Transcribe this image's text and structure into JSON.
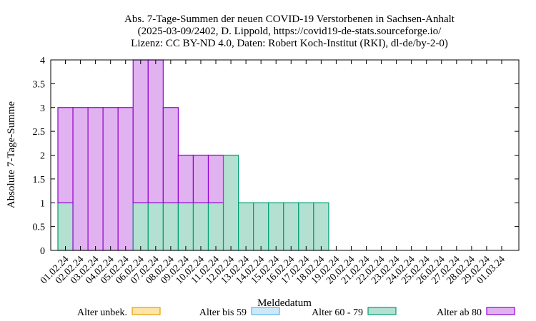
{
  "chart_data": {
    "type": "bar",
    "stacked": true,
    "title_lines": [
      "Abs. 7-Tage-Summen der neuen COVID-19 Verstorbenen in Sachsen-Anhalt",
      "(2025-03-09/2402, D. Lippold, https://covid19-de-stats.sourceforge.io/",
      "Lizenz: CC BY-ND 4.0, Daten: Robert Koch-Institut (RKI), dl-de/by-2-0)"
    ],
    "xlabel": "Meldedatum",
    "ylabel": "Absolute 7-Tage-Summe",
    "ylim": [
      0,
      4
    ],
    "yticks": [
      0,
      0.5,
      1,
      1.5,
      2,
      2.5,
      3,
      3.5,
      4
    ],
    "ytick_labels": [
      "0",
      "0.5",
      "1",
      "1.5",
      "2",
      "2.5",
      "3",
      "3.5",
      "4"
    ],
    "grid": false,
    "legend_position": "bottom",
    "categories": [
      "01.02.24",
      "02.02.24",
      "03.02.24",
      "04.02.24",
      "05.02.24",
      "06.02.24",
      "07.02.24",
      "08.02.24",
      "09.02.24",
      "10.02.24",
      "11.02.24",
      "12.02.24",
      "13.02.24",
      "14.02.24",
      "15.02.24",
      "16.02.24",
      "17.02.24",
      "18.02.24",
      "19.02.24",
      "20.02.24",
      "21.02.24",
      "22.02.24",
      "23.02.24",
      "24.02.24",
      "25.02.24",
      "26.02.24",
      "27.02.24",
      "28.02.24",
      "29.02.24",
      "01.03.24"
    ],
    "series": [
      {
        "name": "Alter unbek.",
        "fill": "#fde4a8",
        "stroke": "#e69f00",
        "values": [
          0,
          0,
          0,
          0,
          0,
          0,
          0,
          0,
          0,
          0,
          0,
          0,
          0,
          0,
          0,
          0,
          0,
          0,
          0,
          0,
          0,
          0,
          0,
          0,
          0,
          0,
          0,
          0,
          0,
          0
        ]
      },
      {
        "name": "Alter bis 59",
        "fill": "#cde9f7",
        "stroke": "#56b4e9",
        "values": [
          0,
          0,
          0,
          0,
          0,
          0,
          0,
          0,
          0,
          0,
          0,
          0,
          0,
          0,
          0,
          0,
          0,
          0,
          0,
          0,
          0,
          0,
          0,
          0,
          0,
          0,
          0,
          0,
          0,
          0
        ]
      },
      {
        "name": "Alter 60 - 79",
        "fill": "#b3e0d0",
        "stroke": "#009e73",
        "values": [
          1,
          0,
          0,
          0,
          0,
          1,
          1,
          1,
          1,
          1,
          1,
          2,
          1,
          1,
          1,
          1,
          1,
          1,
          0,
          0,
          0,
          0,
          0,
          0,
          0,
          0,
          0,
          0,
          0,
          0
        ]
      },
      {
        "name": "Alter ab 80",
        "fill": "#e0b3f0",
        "stroke": "#9400d3",
        "values": [
          2,
          3,
          3,
          3,
          3,
          3,
          3,
          2,
          1,
          1,
          1,
          0,
          0,
          0,
          0,
          0,
          0,
          0,
          0,
          0,
          0,
          0,
          0,
          0,
          0,
          0,
          0,
          0,
          0,
          0
        ]
      }
    ]
  }
}
